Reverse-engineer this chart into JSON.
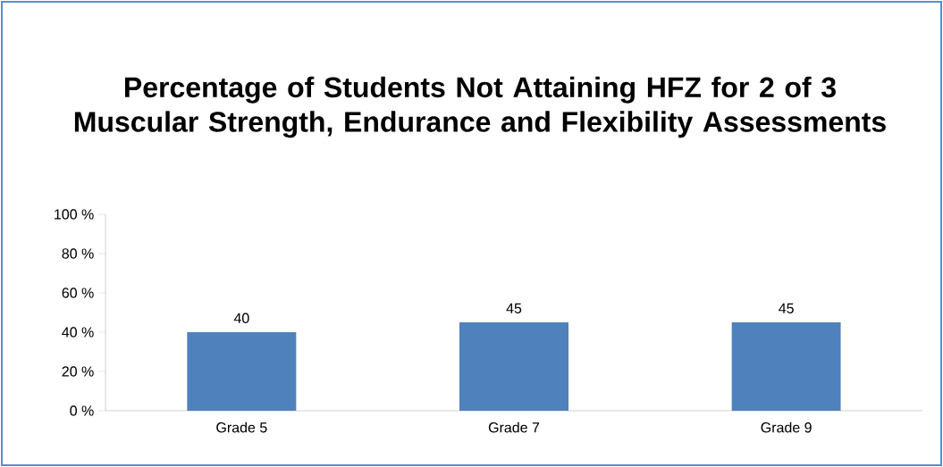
{
  "chart_data": {
    "type": "bar",
    "title": "Percentage of Students Not Attaining HFZ for 2 of 3 Muscular Strength, Endurance and Flexibility Assessments",
    "categories": [
      "Grade 5",
      "Grade 7",
      "Grade 9"
    ],
    "values": [
      40,
      45,
      45
    ],
    "color": "#4f81bd",
    "ylim": [
      0,
      100
    ],
    "yticks": [
      {
        "value": 0,
        "label": "0 %"
      },
      {
        "value": 20,
        "label": "20 %"
      },
      {
        "value": 40,
        "label": "40 %"
      },
      {
        "value": 60,
        "label": "60 %"
      },
      {
        "value": 80,
        "label": "80 %"
      },
      {
        "value": 100,
        "label": "100 %"
      }
    ],
    "data_labels": true,
    "grid": false
  }
}
